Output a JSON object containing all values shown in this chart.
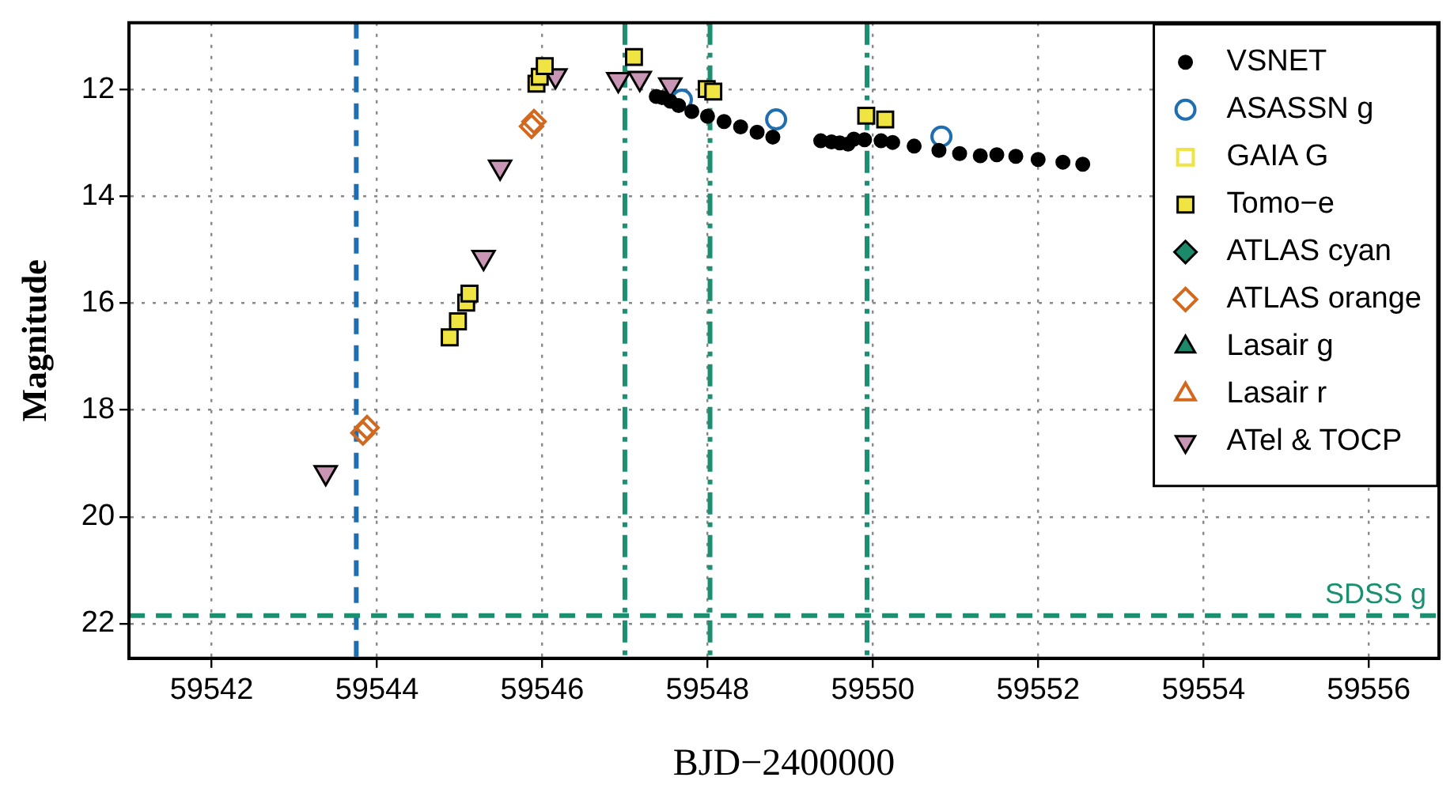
{
  "chart_data": {
    "type": "scatter",
    "xlabel": "BJD−2400000",
    "ylabel": "Magnitude",
    "xlim": [
      59541,
      59556.85
    ],
    "xticks": [
      59542,
      59544,
      59546,
      59548,
      59550,
      59552,
      59554,
      59556
    ],
    "ylim": [
      22.65,
      10.75
    ],
    "yticks": [
      12,
      14,
      16,
      18,
      20,
      22
    ],
    "grid": true,
    "legend": "top right",
    "ref_lines": [
      {
        "axis": "x",
        "value": 59543.75,
        "color": "#1f6fb0",
        "line_style": "dashed"
      },
      {
        "axis": "x",
        "value": 59547.0,
        "color": "#1a9070",
        "line_style": "dashdot"
      },
      {
        "axis": "x",
        "value": 59548.03,
        "color": "#1a9070",
        "line_style": "dashdot"
      },
      {
        "axis": "x",
        "value": 59549.93,
        "color": "#1a9070",
        "line_style": "dashdot"
      },
      {
        "axis": "y",
        "value": 21.85,
        "label": "SDSS g",
        "color": "#1a9070",
        "line_style": "dashed"
      }
    ],
    "series": [
      {
        "name": "VSNET",
        "color": "#000000",
        "marker": "circle",
        "x": [
          59547.38,
          59547.45,
          59547.55,
          59547.65,
          59547.81,
          59548.0,
          59548.2,
          59548.4,
          59548.6,
          59548.79,
          59549.37,
          59549.5,
          59549.6,
          59549.7,
          59549.77,
          59549.9,
          59550.1,
          59550.24,
          59550.5,
          59550.8,
          59551.05,
          59551.3,
          59551.5,
          59551.73,
          59552.0,
          59552.3,
          59552.54
        ],
        "values": [
          12.13,
          12.15,
          12.22,
          12.3,
          12.41,
          12.5,
          12.6,
          12.7,
          12.8,
          12.89,
          12.96,
          12.98,
          13.0,
          13.02,
          12.93,
          12.94,
          12.96,
          12.99,
          13.06,
          13.14,
          13.2,
          13.24,
          13.22,
          13.25,
          13.31,
          13.36,
          13.4
        ]
      },
      {
        "name": "ASASSN g",
        "color": "#1f6fb0",
        "marker": "circle-open",
        "x": [
          59547.69,
          59548.83,
          59550.83
        ],
        "values": [
          12.19,
          12.56,
          12.88
        ]
      },
      {
        "name": "GAIA G",
        "color": "#f0e442",
        "marker": "square-open"
      },
      {
        "name": "Tomo−e",
        "color": "#f0e442",
        "marker": "square",
        "x": [
          59544.88,
          59544.98,
          59545.08,
          59545.12,
          59545.93,
          59545.97,
          59546.03,
          59547.11,
          59547.99,
          59548.07,
          59549.92,
          59550.15
        ],
        "values": [
          16.64,
          16.34,
          15.99,
          15.82,
          11.89,
          11.76,
          11.56,
          11.39,
          11.99,
          12.04,
          12.49,
          12.56
        ]
      },
      {
        "name": "ATLAS cyan",
        "color": "#1a8a6a",
        "marker": "diamond"
      },
      {
        "name": "ATLAS orange",
        "color": "#d2691e",
        "marker": "diamond-open",
        "x": [
          59543.83,
          59543.88,
          59545.87,
          59545.9
        ],
        "values": [
          18.43,
          18.33,
          12.69,
          12.6
        ]
      },
      {
        "name": "Lasair g",
        "color": "#1a8a6a",
        "marker": "triangle"
      },
      {
        "name": "Lasair r",
        "color": "#d2691e",
        "marker": "triangle-open"
      },
      {
        "name": "ATel & TOCP",
        "color": "#c995b5",
        "marker": "triangle-down",
        "x": [
          59543.38,
          59545.29,
          59545.49,
          59546.16,
          59546.92,
          59547.18,
          59547.55
        ],
        "values": [
          19.17,
          15.14,
          13.45,
          11.74,
          11.81,
          11.79,
          11.91
        ]
      }
    ]
  }
}
